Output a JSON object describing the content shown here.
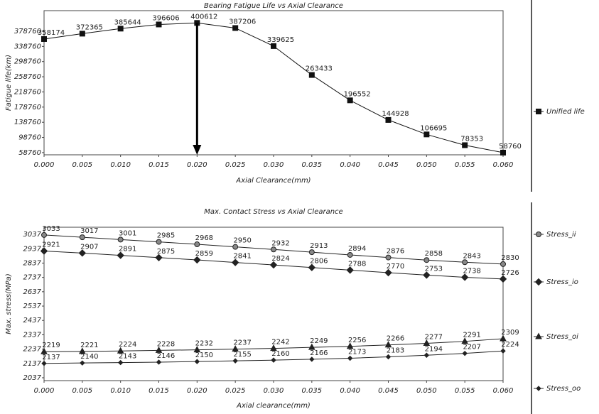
{
  "chart_data": [
    {
      "type": "line",
      "title": "Bearing Fatigue Life vs Axial Clearance",
      "x_label": "Axial Clearance(mm)",
      "y_label": "Fatigue life(km)",
      "x": [
        0,
        0.005,
        0.01,
        0.015,
        0.02,
        0.025,
        0.03,
        0.035,
        0.04,
        0.045,
        0.05,
        0.055,
        0.06
      ],
      "series": [
        {
          "name": "Unified life",
          "color": "#111111",
          "marker": "square",
          "values": [
            358174,
            372365,
            385644,
            396606,
            400612,
            387206,
            339625,
            263433,
            196552,
            144928,
            106695,
            78353,
            58760
          ]
        }
      ],
      "xlim": [
        0,
        0.06
      ],
      "ylim": [
        53000,
        433000
      ],
      "xticks": [
        {
          "value": 0,
          "label": "0.000"
        },
        {
          "value": 0.005,
          "label": "0.005"
        },
        {
          "value": 0.01,
          "label": "0.010"
        },
        {
          "value": 0.015,
          "label": "0.015"
        },
        {
          "value": 0.02,
          "label": "0.020"
        },
        {
          "value": 0.025,
          "label": "0.025"
        },
        {
          "value": 0.03,
          "label": "0.030"
        },
        {
          "value": 0.035,
          "label": "0.035"
        },
        {
          "value": 0.04,
          "label": "0.040"
        },
        {
          "value": 0.045,
          "label": "0.045"
        },
        {
          "value": 0.05,
          "label": "0.050"
        },
        {
          "value": 0.055,
          "label": "0.055"
        },
        {
          "value": 0.06,
          "label": "0.060"
        }
      ],
      "yticks": [
        58760,
        98760,
        138760,
        178760,
        218760,
        258760,
        298760,
        338760,
        378760
      ],
      "legend": "right"
    },
    {
      "type": "line",
      "title": "Max. Contact Stress vs Axial Clearance",
      "x_label": "Axial clearance(mm)",
      "y_label": "Max. stress(MPa)",
      "x": [
        0,
        0.005,
        0.01,
        0.015,
        0.02,
        0.025,
        0.03,
        0.035,
        0.04,
        0.045,
        0.05,
        0.055,
        0.06
      ],
      "series": [
        {
          "name": "Stress_ii",
          "color": "#222222",
          "marker": "circle",
          "values": [
            3033,
            3017,
            3001,
            2985,
            2968,
            2950,
            2932,
            2913,
            2894,
            2876,
            2858,
            2843,
            2830
          ]
        },
        {
          "name": "Stress_io",
          "color": "#222222",
          "marker": "diamond",
          "values": [
            2921,
            2907,
            2891,
            2875,
            2859,
            2841,
            2824,
            2806,
            2788,
            2770,
            2753,
            2738,
            2726
          ]
        },
        {
          "name": "Stress_oi",
          "color": "#222222",
          "marker": "triangle",
          "values": [
            2219,
            2221,
            2224,
            2228,
            2232,
            2237,
            2242,
            2249,
            2256,
            2266,
            2277,
            2291,
            2309
          ]
        },
        {
          "name": "Stress_oo",
          "color": "#222222",
          "marker": "small-diamond",
          "values": [
            2137,
            2140,
            2143,
            2146,
            2150,
            2155,
            2160,
            2166,
            2173,
            2183,
            2194,
            2207,
            2224
          ]
        }
      ],
      "xlim": [
        0,
        0.06
      ],
      "ylim": [
        2017,
        3087
      ],
      "xticks": [
        {
          "value": 0,
          "label": "0.000"
        },
        {
          "value": 0.005,
          "label": "0.005"
        },
        {
          "value": 0.01,
          "label": "0.010"
        },
        {
          "value": 0.015,
          "label": "0.015"
        },
        {
          "value": 0.02,
          "label": "0.020"
        },
        {
          "value": 0.025,
          "label": "0.025"
        },
        {
          "value": 0.03,
          "label": "0.030"
        },
        {
          "value": 0.035,
          "label": "0.035"
        },
        {
          "value": 0.04,
          "label": "0.040"
        },
        {
          "value": 0.045,
          "label": "0.045"
        },
        {
          "value": 0.05,
          "label": "0.050"
        },
        {
          "value": 0.055,
          "label": "0.055"
        },
        {
          "value": 0.06,
          "label": "0.060"
        }
      ],
      "yticks": [
        2037,
        2137,
        2237,
        2337,
        2437,
        2537,
        2637,
        2737,
        2837,
        2937,
        3037
      ],
      "legend": "right"
    }
  ]
}
